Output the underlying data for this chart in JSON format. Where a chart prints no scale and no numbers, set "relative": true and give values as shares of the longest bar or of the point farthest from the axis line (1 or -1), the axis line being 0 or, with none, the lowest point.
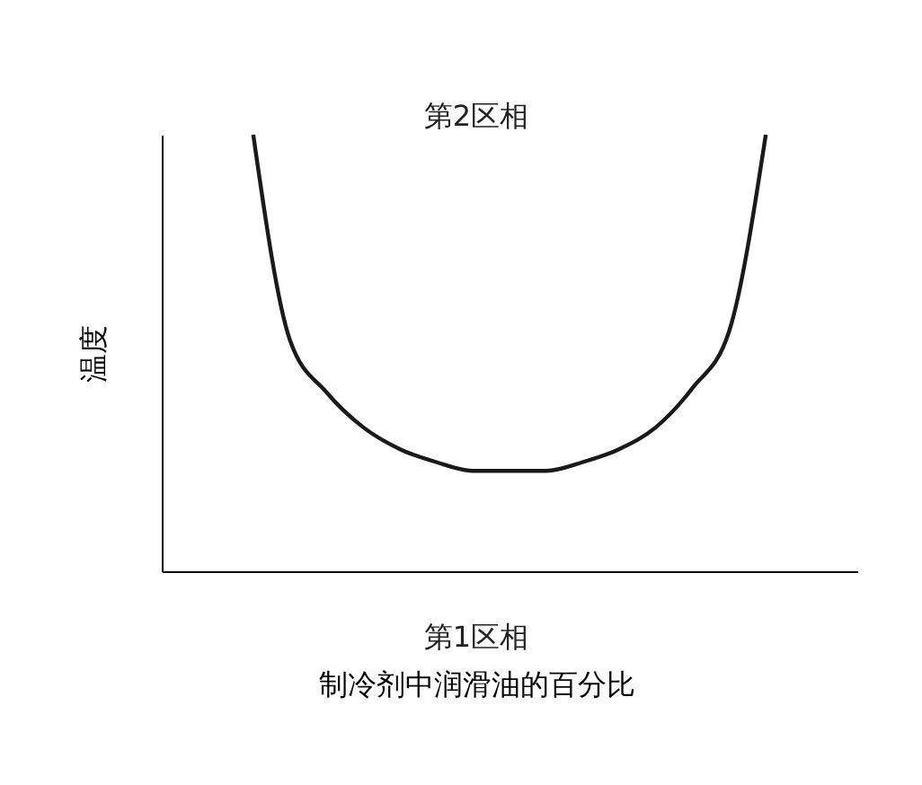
{
  "chart_data": {
    "type": "line",
    "relative": true,
    "ylabel": "温度",
    "xlabel": "制冷剂中润滑油的百分比",
    "annotations": [
      "第2区相",
      "第1区相"
    ],
    "categories": [
      null,
      null,
      null,
      null,
      null,
      null,
      null,
      null,
      null,
      null,
      null,
      null,
      null,
      null,
      null
    ],
    "series": [
      {
        "color": "#1a1a1a",
        "values": [
          1,
          0.53,
          0.41,
          0.33,
          0.28,
          0.25,
          0.23,
          0.23,
          0.23,
          0.25,
          0.28,
          0.33,
          0.42,
          0.55,
          1
        ]
      }
    ],
    "tick_labels": false,
    "grid": false,
    "marker": "none",
    "line_style": "solid"
  }
}
